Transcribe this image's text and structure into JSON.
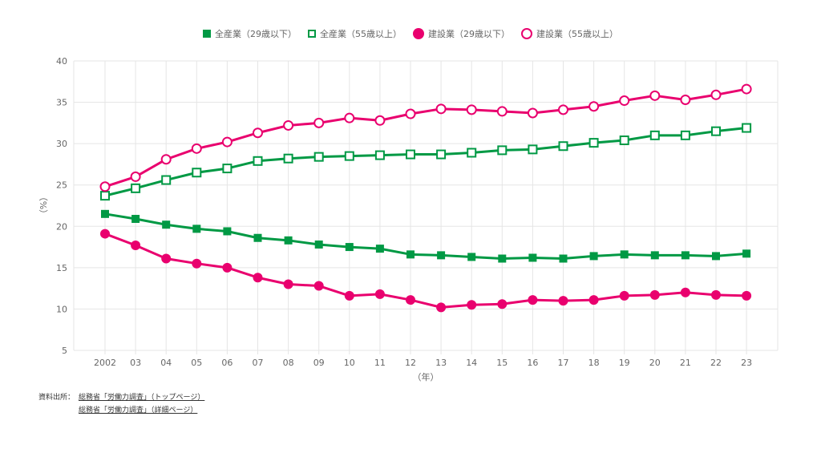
{
  "chart_data": {
    "type": "line",
    "categories": [
      "2002",
      "03",
      "04",
      "05",
      "06",
      "07",
      "08",
      "09",
      "10",
      "11",
      "12",
      "13",
      "14",
      "15",
      "16",
      "17",
      "18",
      "19",
      "20",
      "21",
      "22",
      "23"
    ],
    "xlabel": "（年）",
    "ylabel": "（%）",
    "ylim": [
      5,
      40
    ],
    "yticks": [
      5,
      10,
      15,
      20,
      25,
      30,
      35,
      40
    ],
    "grid": true,
    "legend_position": "top",
    "series": [
      {
        "name": "全産業（29歳以下）",
        "color": "#009944",
        "marker": "square-filled",
        "values": [
          21.5,
          20.9,
          20.2,
          19.7,
          19.4,
          18.6,
          18.3,
          17.8,
          17.5,
          17.3,
          16.6,
          16.5,
          16.3,
          16.1,
          16.2,
          16.1,
          16.4,
          16.6,
          16.5,
          16.5,
          16.4,
          16.7
        ]
      },
      {
        "name": "全産業（55歳以上）",
        "color": "#009944",
        "marker": "square-open",
        "values": [
          23.7,
          24.6,
          25.6,
          26.5,
          27.0,
          27.9,
          28.2,
          28.4,
          28.5,
          28.6,
          28.7,
          28.7,
          28.9,
          29.2,
          29.3,
          29.7,
          30.1,
          30.4,
          31.0,
          31.0,
          31.5,
          31.9
        ]
      },
      {
        "name": "建設業（29歳以下）",
        "color": "#e9006e",
        "marker": "circle-filled",
        "values": [
          19.1,
          17.7,
          16.1,
          15.5,
          15.0,
          13.8,
          13.0,
          12.8,
          11.6,
          11.8,
          11.1,
          10.2,
          10.5,
          10.6,
          11.1,
          11.0,
          11.1,
          11.6,
          11.7,
          12.0,
          11.7,
          11.6
        ]
      },
      {
        "name": "建設業（55歳以上）",
        "color": "#e9006e",
        "marker": "circle-open",
        "values": [
          24.8,
          26.0,
          28.1,
          29.4,
          30.2,
          31.3,
          32.2,
          32.5,
          33.1,
          32.8,
          33.6,
          34.2,
          34.1,
          33.9,
          33.7,
          34.1,
          34.5,
          35.2,
          35.8,
          35.3,
          35.9,
          36.6
        ]
      }
    ]
  },
  "source": {
    "label": "資料出所：",
    "links": [
      "総務省「労働力調査」（トップページ）",
      "総務省「労働力調査」（詳細ページ）"
    ]
  }
}
